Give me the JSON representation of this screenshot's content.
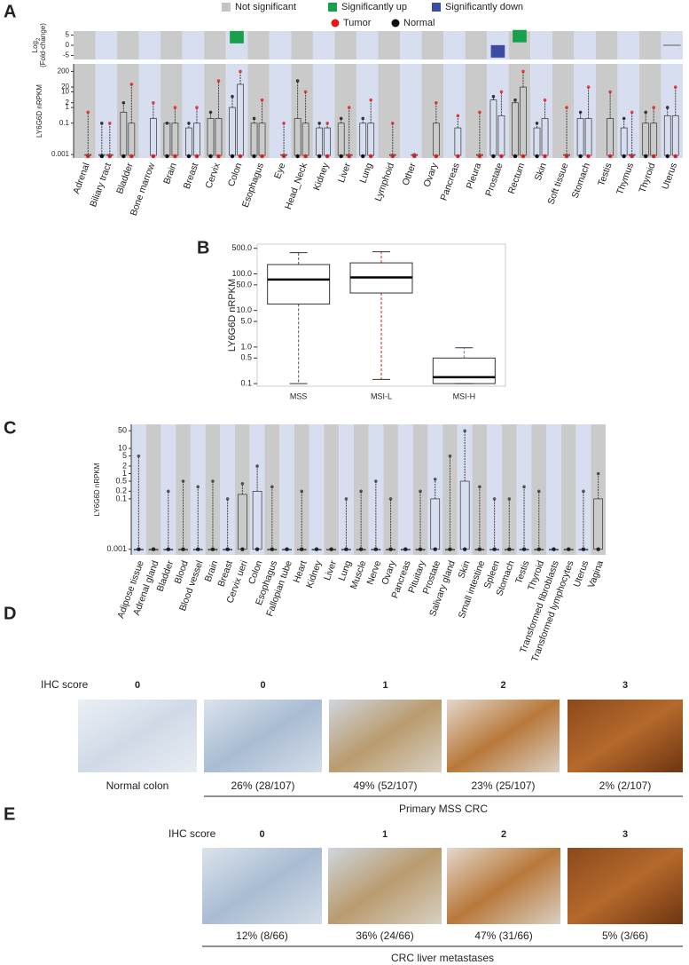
{
  "chart_data": [
    {
      "type": "box",
      "panel": "A",
      "legend": [
        {
          "name": "Not significant",
          "color": "#c4c4c4"
        },
        {
          "name": "Significantly up",
          "color": "#19a04b"
        },
        {
          "name": "Significantly down",
          "color": "#3d4aa3"
        }
      ],
      "fold_label": "Log",
      "fold_label_sub": "2",
      "fold_label_2": "(Fold-change)",
      "fold_ylim": [
        -7,
        7
      ],
      "fold_yticks": [
        5,
        0,
        -5
      ],
      "fold_change": {
        "values": [
          null,
          null,
          null,
          null,
          null,
          null,
          null,
          4,
          null,
          null,
          null,
          null,
          null,
          null,
          null,
          null,
          null,
          null,
          null,
          -3,
          4.5,
          null,
          null,
          null,
          null,
          null,
          null,
          0
        ],
        "colors": [
          null,
          null,
          null,
          null,
          null,
          null,
          null,
          "#19a04b",
          null,
          null,
          null,
          null,
          null,
          null,
          null,
          null,
          null,
          null,
          null,
          "#3d4aa3",
          "#19a04b",
          null,
          null,
          null,
          null,
          null,
          null,
          "#888888"
        ]
      },
      "ylabel": "LY6G6D nRPKM",
      "ylog": true,
      "ylim": [
        0.0006,
        600
      ],
      "yticks": [
        0.001,
        0.1,
        1,
        2,
        10,
        20,
        200
      ],
      "categories": [
        "Adrenal",
        "Biliary tract",
        "Bladder",
        "Bone marrow",
        "Brain",
        "Breast",
        "Cervix",
        "Colon",
        "Esophagus",
        "Eye",
        "Head_Neck",
        "Kidney",
        "Liver",
        "Lung",
        "Lymphoid",
        "Other",
        "Ovary",
        "Pancreas",
        "Pleura",
        "Prostate",
        "Rectum",
        "Skin",
        "Soft tissue",
        "Stomach",
        "Testis",
        "Thymus",
        "Thyroid",
        "Uterus"
      ],
      "series": [
        {
          "name": "Tumor",
          "color": "#e3191c",
          "q3": [
            0.001,
            0.001,
            0.1,
            0.2,
            0.1,
            0.1,
            0.2,
            30,
            0.1,
            0.001,
            0.1,
            0.05,
            0.001,
            0.1,
            0.001,
            0.001,
            0.1,
            0.05,
            0.001,
            0.3,
            20,
            0.2,
            0.001,
            0.2,
            0.2,
            0.001,
            0.1,
            0.3
          ],
          "max": [
            0.5,
            0.1,
            30,
            2,
            1,
            1,
            50,
            200,
            3,
            0.1,
            10,
            0.1,
            1,
            3,
            0.1,
            0.001,
            2,
            0.3,
            0.5,
            10,
            200,
            3,
            1,
            20,
            10,
            0.5,
            1,
            20
          ]
        },
        {
          "name": "Normal",
          "color": "#111111",
          "q3": [
            null,
            0.001,
            0.5,
            null,
            0.1,
            0.05,
            0.2,
            1,
            0.1,
            null,
            0.2,
            0.05,
            0.1,
            0.1,
            null,
            null,
            null,
            null,
            null,
            3,
            2,
            0.05,
            null,
            0.2,
            null,
            0.05,
            0.1,
            0.3
          ],
          "max": [
            null,
            0.1,
            2,
            null,
            0.1,
            0.1,
            0.5,
            5,
            0.2,
            null,
            50,
            0.1,
            0.2,
            0.2,
            null,
            null,
            null,
            null,
            null,
            5,
            3,
            0.1,
            null,
            0.5,
            null,
            0.2,
            0.5,
            1
          ]
        }
      ]
    },
    {
      "type": "box",
      "panel": "B",
      "ylabel": "LY6G6D nRPKM",
      "ylog": true,
      "ylim": [
        0.085,
        650
      ],
      "yticks": [
        {
          "value": 0.1,
          "label": "0.1"
        },
        {
          "value": 0.5,
          "label": "0.5"
        },
        {
          "value": 1,
          "label": "1.0"
        },
        {
          "value": 5,
          "label": "5.0"
        },
        {
          "value": 10,
          "label": "10.0"
        },
        {
          "value": 50,
          "label": "50.0"
        },
        {
          "value": 100,
          "label": "100.0"
        },
        {
          "value": 500,
          "label": "500.0"
        }
      ],
      "categories": [
        "MSS",
        "MSI-L",
        "MSI-H"
      ],
      "colors": [
        "#555555",
        "#e3191c",
        "#6b70d4"
      ],
      "min": [
        0.1,
        0.13,
        0.1
      ],
      "q1": [
        15,
        30,
        0.1
      ],
      "median": [
        70,
        80,
        0.15
      ],
      "q3": [
        180,
        200,
        0.5
      ],
      "max": [
        380,
        400,
        0.95
      ]
    },
    {
      "type": "box",
      "panel": "C",
      "ylabel": "LY6G6D nRPKM",
      "ylog": true,
      "ylim": [
        0.0006,
        90
      ],
      "yticks": [
        0.001,
        0.1,
        0.2,
        0.5,
        1,
        2,
        5,
        10,
        50
      ],
      "categories": [
        "Adipose tissue",
        "Adrenal gland",
        "Bladder",
        "Blood",
        "Blood vessel",
        "Brain",
        "Breast",
        "Cervix ueri",
        "Colon",
        "Esophagus",
        "Fallopian tube",
        "Heart",
        "Kidney",
        "Liver",
        "Lung",
        "Muscle",
        "Nerve",
        "Ovary",
        "Pancreas",
        "Pituitary",
        "Prostate",
        "Salivary gland",
        "Skin",
        "Small intestine",
        "Spleen",
        "Stomach",
        "Testis",
        "Thyroid",
        "Transformed fibroblasts",
        "Transformed lymphocytes",
        "Uterus",
        "Vagina"
      ],
      "color": "#222222",
      "q3": [
        0.001,
        0.001,
        0.001,
        0.001,
        0.001,
        0.001,
        0.001,
        0.15,
        0.2,
        0.001,
        0.001,
        0.001,
        0.001,
        0.001,
        0.001,
        0.001,
        0.001,
        0.001,
        0.001,
        0.001,
        0.1,
        0.001,
        0.5,
        0.001,
        0.001,
        0.001,
        0.001,
        0.001,
        0.001,
        0.001,
        0.001,
        0.1
      ],
      "max": [
        5,
        0.001,
        0.2,
        0.5,
        0.3,
        0.5,
        0.1,
        0.4,
        2,
        0.3,
        0.001,
        0.2,
        0.001,
        0.001,
        0.1,
        0.2,
        0.5,
        0.1,
        0.001,
        0.2,
        0.6,
        5,
        50,
        0.3,
        0.1,
        0.1,
        0.3,
        0.2,
        0.001,
        0.001,
        0.2,
        1
      ]
    }
  ],
  "ihc": [
    {
      "panel": "D",
      "score_label": "IHC score",
      "scores": [
        0,
        0,
        1,
        2,
        3
      ],
      "captions": [
        "Normal colon",
        "26% (28/107)",
        "49% (52/107)",
        "23% (25/107)",
        "2% (2/107)"
      ],
      "group": "Primary MSS CRC"
    },
    {
      "panel": "E",
      "score_label": "IHC score",
      "scores": [
        0,
        1,
        2,
        3
      ],
      "captions": [
        "12% (8/66)",
        "36% (24/66)",
        "47% (31/66)",
        "5% (3/66)"
      ],
      "group": "CRC liver metastases"
    }
  ]
}
